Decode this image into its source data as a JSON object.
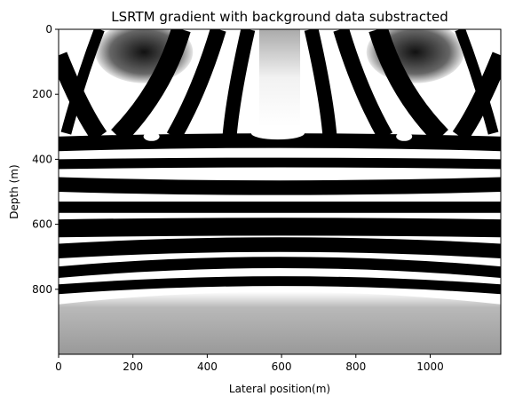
{
  "chart_data": {
    "type": "heatmap",
    "title": "LSRTM gradient with background data substracted",
    "xlabel": "Lateral position(m)",
    "ylabel": "Depth (m)",
    "xlim": [
      0,
      1190
    ],
    "ylim": [
      1000,
      0
    ],
    "colormap": "gray",
    "x_ticks": [
      {
        "value": 0,
        "label": "0"
      },
      {
        "value": 200,
        "label": "200"
      },
      {
        "value": 400,
        "label": "400"
      },
      {
        "value": 600,
        "label": "600"
      },
      {
        "value": 800,
        "label": "800"
      },
      {
        "value": 1000,
        "label": "1000"
      }
    ],
    "y_ticks": [
      {
        "value": 0,
        "label": "0"
      },
      {
        "value": 200,
        "label": "200"
      },
      {
        "value": 400,
        "label": "400"
      },
      {
        "value": 600,
        "label": "600"
      },
      {
        "value": 800,
        "label": "800"
      }
    ],
    "colors": {
      "black": "#000000",
      "white": "#ffffff",
      "background": "#999999"
    },
    "bands": [
      {
        "depth_top": 330,
        "depth_bottom": 375,
        "shade": "black",
        "center_depth": 320
      },
      {
        "depth_top": 400,
        "depth_bottom": 430,
        "shade": "black",
        "center_depth": 395
      },
      {
        "depth_top": 455,
        "depth_bottom": 500,
        "shade": "black",
        "center_depth": 465
      },
      {
        "depth_top": 530,
        "depth_bottom": 565,
        "shade": "black",
        "center_depth": 530
      },
      {
        "depth_top": 585,
        "depth_bottom": 640,
        "shade": "black",
        "center_depth": 580
      },
      {
        "depth_top": 660,
        "depth_bottom": 705,
        "shade": "black",
        "center_depth": 640
      },
      {
        "depth_top": 730,
        "depth_bottom": 765,
        "shade": "black",
        "center_depth": 700
      },
      {
        "depth_top": 785,
        "depth_bottom": 815,
        "shade": "black",
        "center_depth": 760
      }
    ],
    "background_depth": 830
  }
}
